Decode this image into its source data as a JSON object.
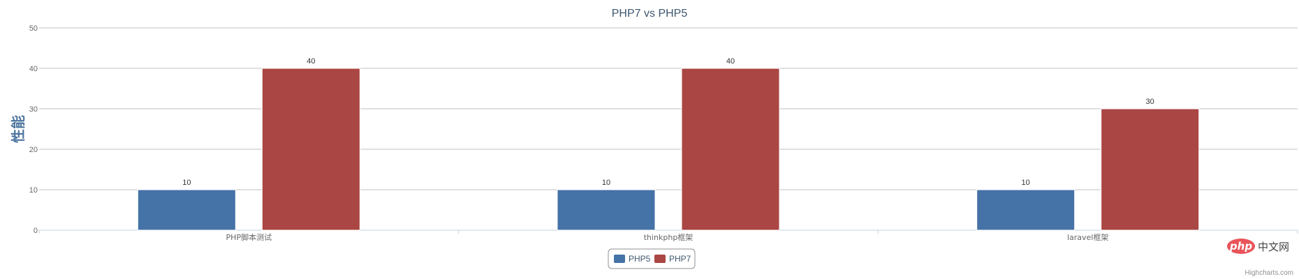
{
  "chart_data": {
    "type": "bar",
    "title": "PHP7 vs PHP5",
    "ylabel": "性能",
    "xlabel": "",
    "categories": [
      "PHP脚本测试",
      "thinkphp框架",
      "laravel框架"
    ],
    "series": [
      {
        "name": "PHP5",
        "values": [
          10,
          10,
          10
        ],
        "color": "#4572a7"
      },
      {
        "name": "PHP7",
        "values": [
          40,
          40,
          30
        ],
        "color": "#aa4643"
      }
    ],
    "ylim": [
      0,
      50
    ],
    "yticks": [
      0,
      10,
      20,
      30,
      40,
      50
    ],
    "grid": true,
    "legend": "bottom-center",
    "data_labels": true,
    "credits": "Highcharts.com"
  },
  "watermark": {
    "logo_text": "php",
    "site_text": "中文网"
  }
}
